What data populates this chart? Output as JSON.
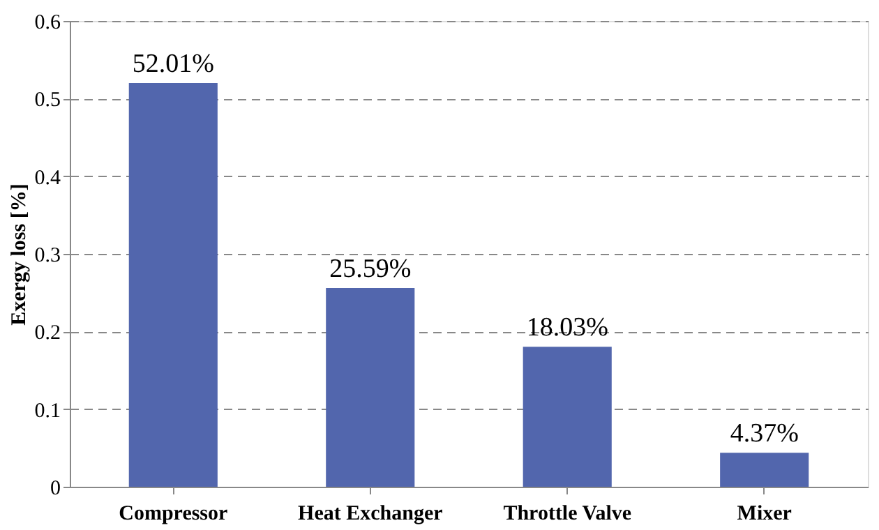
{
  "chart_data": {
    "type": "bar",
    "ylabel": "Exergy loss [%]",
    "categories": [
      "Compressor",
      "Heat Exchanger",
      "Throttle Valve",
      "Mixer"
    ],
    "values": [
      0.5201,
      0.2559,
      0.1803,
      0.0437
    ],
    "value_labels": [
      "52.01%",
      "25.59%",
      "18.03%",
      "4.37%"
    ],
    "color": "#5266ad",
    "ylim": [
      0,
      0.6
    ],
    "yticks": [
      0,
      0.1,
      0.2,
      0.3,
      0.4,
      0.5,
      0.6
    ],
    "grid": "y"
  }
}
